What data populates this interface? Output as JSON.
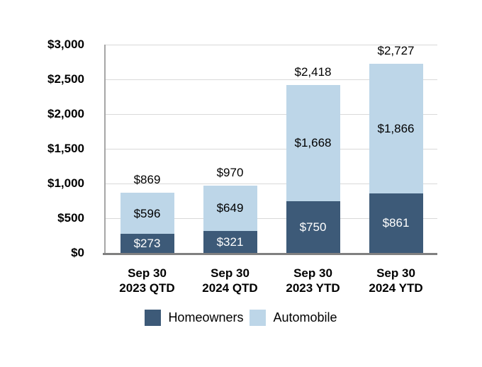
{
  "chart_data": {
    "type": "bar",
    "stacked": true,
    "grid": true,
    "categories": [
      {
        "line1": "Sep 30",
        "line2": "2023 QTD"
      },
      {
        "line1": "Sep 30",
        "line2": "2024 QTD"
      },
      {
        "line1": "Sep 30",
        "line2": "2023 YTD"
      },
      {
        "line1": "Sep 30",
        "line2": "2024 YTD"
      }
    ],
    "series": [
      {
        "name": "Homeowners",
        "color": "#3D5A78",
        "text_color": "#FFFFFF",
        "values": [
          273,
          321,
          750,
          861
        ],
        "value_labels": [
          "$273",
          "$321",
          "$750",
          "$861"
        ]
      },
      {
        "name": "Automobile",
        "color": "#BDD6E8",
        "text_color": "#000000",
        "values": [
          596,
          649,
          1668,
          1866
        ],
        "value_labels": [
          "$596",
          "$649",
          "$1,668",
          "$1,866"
        ]
      }
    ],
    "totals": [
      869,
      970,
      2418,
      2727
    ],
    "total_labels": [
      "$869",
      "$970",
      "$2,418",
      "$2,727"
    ],
    "y_axis": {
      "min": 0,
      "max": 3000,
      "ticks": [
        0,
        500,
        1000,
        1500,
        2000,
        2500,
        3000
      ],
      "tick_labels": [
        "$0",
        "$500",
        "$1,000",
        "$1,500",
        "$2,000",
        "$2,500",
        "$3,000"
      ]
    },
    "legend": {
      "position": "bottom",
      "items": [
        {
          "label": "Homeowners",
          "color": "#3D5A78"
        },
        {
          "label": "Automobile",
          "color": "#BDD6E8"
        }
      ]
    },
    "colors": {
      "gridline": "#D9D9D9",
      "axis_line": "#A6A6A6",
      "baseline": "#808080",
      "text": "#000000",
      "background": "#FFFFFF"
    }
  }
}
